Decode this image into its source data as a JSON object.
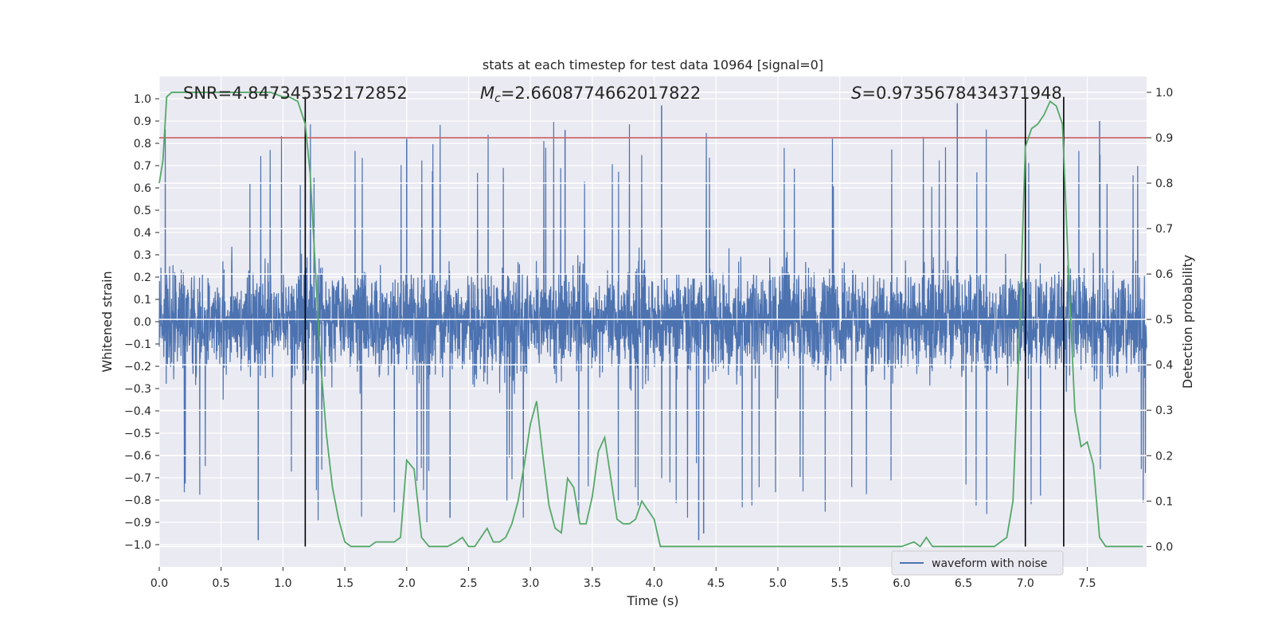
{
  "chart_data": {
    "type": "line",
    "title": "stats at each timestep for test data 10964 [signal=0]",
    "xlabel": "Time (s)",
    "ylabel_left": "Whitened strain",
    "ylabel_right": "Detection probability",
    "xlim": [
      0,
      7.98
    ],
    "ylim_left": [
      -1.1,
      1.1
    ],
    "ylim_right": [
      -0.045,
      1.035
    ],
    "x_ticks": [
      "0.0",
      "0.5",
      "1.0",
      "1.5",
      "2.0",
      "2.5",
      "3.0",
      "3.5",
      "4.0",
      "4.5",
      "5.0",
      "5.5",
      "6.0",
      "6.5",
      "7.0",
      "7.5"
    ],
    "x_tick_values": [
      0,
      0.5,
      1,
      1.5,
      2,
      2.5,
      3,
      3.5,
      4,
      4.5,
      5,
      5.5,
      6,
      6.5,
      7,
      7.5
    ],
    "y_left_ticks": [
      "1.0",
      "0.9",
      "0.8",
      "0.7",
      "0.6",
      "0.5",
      "0.4",
      "0.3",
      "0.2",
      "0.1",
      "0.0",
      "−0.1",
      "−0.2",
      "−0.3",
      "−0.4",
      "−0.5",
      "−0.6",
      "−0.7",
      "−0.8",
      "−0.9",
      "−1.0"
    ],
    "y_left_tick_values": [
      1.0,
      0.9,
      0.8,
      0.7,
      0.6,
      0.5,
      0.4,
      0.3,
      0.2,
      0.1,
      0.0,
      -0.1,
      -0.2,
      -0.3,
      -0.4,
      -0.5,
      -0.6,
      -0.7,
      -0.8,
      -0.9,
      -1.0
    ],
    "y_right_ticks": [
      "1.0",
      "0.9",
      "0.8",
      "0.7",
      "0.6",
      "0.5",
      "0.4",
      "0.3",
      "0.2",
      "0.1",
      "0.0"
    ],
    "y_right_tick_values": [
      1.0,
      0.9,
      0.8,
      0.7,
      0.6,
      0.5,
      0.4,
      0.3,
      0.2,
      0.1,
      0.0
    ],
    "annotations": {
      "snr": "SNR=4.847345352172852",
      "mc_symbol": "M",
      "mc_sub": "c",
      "mc_value": "=2.6608774662017822",
      "s_symbol": "S",
      "s_value": "=0.9735678434371948"
    },
    "threshold": {
      "value": 0.9,
      "axis": "right",
      "color": "#c44e52"
    },
    "vertical_lines": [
      1.18,
      7.0,
      7.31
    ],
    "series": [
      {
        "name": "waveform with noise",
        "axis": "left",
        "color": "#4c72b0",
        "style": "dense noise trace",
        "envelope_typical": 0.45,
        "spike_max": 0.97,
        "spike_min": -0.98
      },
      {
        "name": "detection probability",
        "axis": "right",
        "color": "#55a868",
        "x": [
          0,
          0.03,
          0.06,
          0.1,
          0.2,
          0.3,
          0.4,
          0.5,
          0.6,
          0.7,
          0.8,
          0.9,
          1.0,
          1.05,
          1.12,
          1.18,
          1.22,
          1.26,
          1.3,
          1.35,
          1.4,
          1.45,
          1.5,
          1.55,
          1.6,
          1.7,
          1.75,
          1.8,
          1.9,
          1.95,
          2.0,
          2.06,
          2.12,
          2.18,
          2.25,
          2.33,
          2.4,
          2.45,
          2.5,
          2.55,
          2.6,
          2.65,
          2.7,
          2.75,
          2.8,
          2.85,
          2.9,
          2.95,
          3.0,
          3.05,
          3.1,
          3.15,
          3.2,
          3.25,
          3.3,
          3.35,
          3.4,
          3.45,
          3.5,
          3.55,
          3.6,
          3.65,
          3.7,
          3.75,
          3.8,
          3.85,
          3.9,
          3.95,
          4.0,
          4.05,
          4.1,
          4.15,
          4.2,
          4.3,
          4.4,
          4.6,
          4.8,
          5.0,
          5.1,
          5.2,
          5.3,
          5.5,
          5.7,
          5.9,
          6.0,
          6.1,
          6.15,
          6.2,
          6.25,
          6.3,
          6.35,
          6.4,
          6.5,
          6.6,
          6.7,
          6.75,
          6.8,
          6.85,
          6.9,
          6.95,
          7.0,
          7.05,
          7.1,
          7.15,
          7.2,
          7.25,
          7.3,
          7.35,
          7.4,
          7.45,
          7.5,
          7.55,
          7.6,
          7.65,
          7.7,
          7.8,
          7.9,
          7.95
        ],
        "values": [
          0.8,
          0.85,
          0.99,
          1.0,
          1.0,
          1.0,
          1.0,
          1.0,
          1.0,
          1.0,
          1.0,
          1.0,
          0.99,
          0.99,
          0.98,
          0.93,
          0.82,
          0.62,
          0.42,
          0.25,
          0.13,
          0.06,
          0.01,
          0.0,
          0.0,
          0.0,
          0.01,
          0.01,
          0.01,
          0.02,
          0.19,
          0.17,
          0.02,
          0.0,
          0.0,
          0.0,
          0.01,
          0.02,
          0.0,
          0.0,
          0.02,
          0.04,
          0.01,
          0.01,
          0.02,
          0.05,
          0.1,
          0.18,
          0.27,
          0.32,
          0.2,
          0.09,
          0.04,
          0.03,
          0.15,
          0.13,
          0.05,
          0.05,
          0.11,
          0.21,
          0.24,
          0.15,
          0.06,
          0.05,
          0.05,
          0.06,
          0.1,
          0.08,
          0.06,
          0.0,
          0.0,
          0.0,
          0.0,
          0.0,
          0.0,
          0.0,
          0.0,
          0.0,
          0.0,
          0.0,
          0.0,
          0.0,
          0.0,
          0.0,
          0.0,
          0.01,
          0.0,
          0.02,
          0.0,
          0.0,
          0.0,
          0.0,
          0.0,
          0.0,
          0.0,
          0.0,
          0.01,
          0.02,
          0.1,
          0.45,
          0.88,
          0.92,
          0.93,
          0.95,
          0.98,
          0.97,
          0.93,
          0.6,
          0.3,
          0.22,
          0.23,
          0.18,
          0.02,
          0.0,
          0.0,
          0.0,
          0.0,
          0.0
        ]
      }
    ],
    "legend": {
      "label": "waveform with noise",
      "placement": "lower-right"
    }
  }
}
